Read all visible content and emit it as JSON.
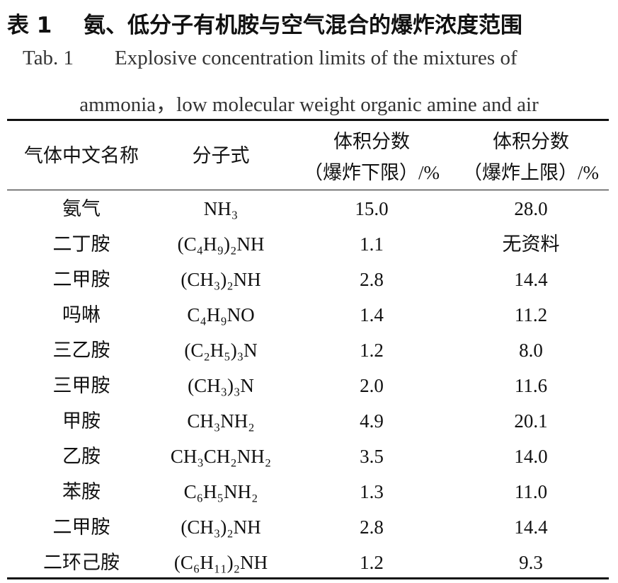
{
  "title_label": "表 1",
  "title": "氨、低分子有机胺与空气混合的爆炸浓度范围",
  "caption_en_label": "Tab. 1",
  "caption_en": [
    "Explosive concentration limits of the mixtures of",
    "ammonia，low molecular weight organic amine and air"
  ],
  "table": {
    "header": [
      [
        "气体中文名称"
      ],
      [
        "分子式"
      ],
      [
        "体积分数",
        "（爆炸下限）/%"
      ],
      [
        "体积分数",
        "（爆炸上限）/%"
      ]
    ],
    "rows": [
      [
        "氨气",
        "NH₃",
        "15.0",
        "28.0"
      ],
      [
        "二丁胺",
        "(C₄H₉)₂NH",
        "1.1",
        "无资料"
      ],
      [
        "二甲胺",
        "(CH₃)₂NH",
        "2.8",
        "14.4"
      ],
      [
        "吗啉",
        "C₄H₉NO",
        "1.4",
        "11.2"
      ],
      [
        "三乙胺",
        "(C₂H₅)₃N",
        "1.2",
        "8.0"
      ],
      [
        "三甲胺",
        "(CH₃)₃N",
        "2.0",
        "11.6"
      ],
      [
        "甲胺",
        "CH₃NH₂",
        "4.9",
        "20.1"
      ],
      [
        "乙胺",
        "CH₃CH₂NH₂",
        "3.5",
        "14.0"
      ],
      [
        "苯胺",
        "C₆H₅NH₂",
        "1.3",
        "11.0"
      ],
      [
        "二甲胺",
        "(CH₃)₂NH",
        "2.8",
        "14.4"
      ],
      [
        "二环己胺",
        "(C₆H₁₁)₂NH",
        "1.2",
        "9.3"
      ]
    ]
  }
}
